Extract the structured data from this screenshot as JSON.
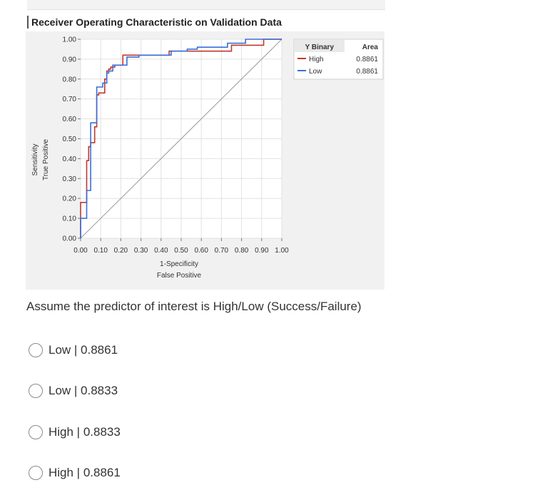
{
  "report": {
    "title": "Receiver Operating Characteristic on Validation Data"
  },
  "chart_data": {
    "type": "line",
    "title": "Receiver Operating Characteristic on Validation Data",
    "xlabel": [
      "1-Specificity",
      "False Positive"
    ],
    "ylabel": [
      "Sensitivity",
      "True Positive"
    ],
    "xlim": [
      0,
      1
    ],
    "ylim": [
      0,
      1
    ],
    "x_ticks": [
      "0.00",
      "0.10",
      "0.20",
      "0.30",
      "0.40",
      "0.50",
      "0.60",
      "0.70",
      "0.80",
      "0.90",
      "1.00"
    ],
    "y_ticks": [
      "0.00",
      "0.10",
      "0.20",
      "0.30",
      "0.40",
      "0.50",
      "0.60",
      "0.70",
      "0.80",
      "0.90",
      "1.00"
    ],
    "grid": true,
    "legend": {
      "placement": "top-right",
      "header": [
        "Y Binary",
        "Area"
      ],
      "entries": [
        {
          "name": "High",
          "area": "0.8861",
          "color": "#c0392b"
        },
        {
          "name": "Low",
          "area": "0.8861",
          "color": "#3a6fd8"
        }
      ]
    },
    "series": [
      {
        "name": "High",
        "color": "#c0392b",
        "points": [
          [
            0,
            0
          ],
          [
            0,
            0.18
          ],
          [
            0.03,
            0.18
          ],
          [
            0.03,
            0.39
          ],
          [
            0.04,
            0.39
          ],
          [
            0.04,
            0.46
          ],
          [
            0.05,
            0.46
          ],
          [
            0.05,
            0.48
          ],
          [
            0.07,
            0.48
          ],
          [
            0.07,
            0.56
          ],
          [
            0.08,
            0.56
          ],
          [
            0.08,
            0.72
          ],
          [
            0.09,
            0.72
          ],
          [
            0.09,
            0.73
          ],
          [
            0.12,
            0.73
          ],
          [
            0.12,
            0.8
          ],
          [
            0.13,
            0.8
          ],
          [
            0.13,
            0.84
          ],
          [
            0.14,
            0.84
          ],
          [
            0.14,
            0.85
          ],
          [
            0.15,
            0.85
          ],
          [
            0.15,
            0.86
          ],
          [
            0.17,
            0.86
          ],
          [
            0.17,
            0.87
          ],
          [
            0.21,
            0.87
          ],
          [
            0.21,
            0.92
          ],
          [
            0.44,
            0.92
          ],
          [
            0.44,
            0.94
          ],
          [
            0.75,
            0.94
          ],
          [
            0.75,
            0.97
          ],
          [
            0.91,
            0.97
          ],
          [
            0.91,
            1.0
          ],
          [
            1.0,
            1.0
          ]
        ]
      },
      {
        "name": "Low",
        "color": "#3a6fd8",
        "points": [
          [
            0,
            0
          ],
          [
            0,
            0.1
          ],
          [
            0.03,
            0.1
          ],
          [
            0.03,
            0.24
          ],
          [
            0.05,
            0.24
          ],
          [
            0.05,
            0.58
          ],
          [
            0.08,
            0.58
          ],
          [
            0.08,
            0.76
          ],
          [
            0.11,
            0.76
          ],
          [
            0.11,
            0.78
          ],
          [
            0.13,
            0.78
          ],
          [
            0.13,
            0.83
          ],
          [
            0.14,
            0.83
          ],
          [
            0.14,
            0.84
          ],
          [
            0.16,
            0.84
          ],
          [
            0.16,
            0.87
          ],
          [
            0.23,
            0.87
          ],
          [
            0.23,
            0.91
          ],
          [
            0.29,
            0.91
          ],
          [
            0.29,
            0.92
          ],
          [
            0.45,
            0.92
          ],
          [
            0.45,
            0.94
          ],
          [
            0.53,
            0.94
          ],
          [
            0.53,
            0.95
          ],
          [
            0.58,
            0.95
          ],
          [
            0.58,
            0.96
          ],
          [
            0.73,
            0.96
          ],
          [
            0.73,
            0.98
          ],
          [
            0.82,
            0.98
          ],
          [
            0.82,
            1.0
          ],
          [
            1.0,
            1.0
          ]
        ]
      }
    ]
  },
  "question": {
    "text": "Assume the predictor of interest is High/Low (Success/Failure)",
    "options": [
      {
        "label": "Low | 0.8861"
      },
      {
        "label": "Low | 0.8833"
      },
      {
        "label": "High | 0.8833"
      },
      {
        "label": "High | 0.8861"
      }
    ]
  }
}
